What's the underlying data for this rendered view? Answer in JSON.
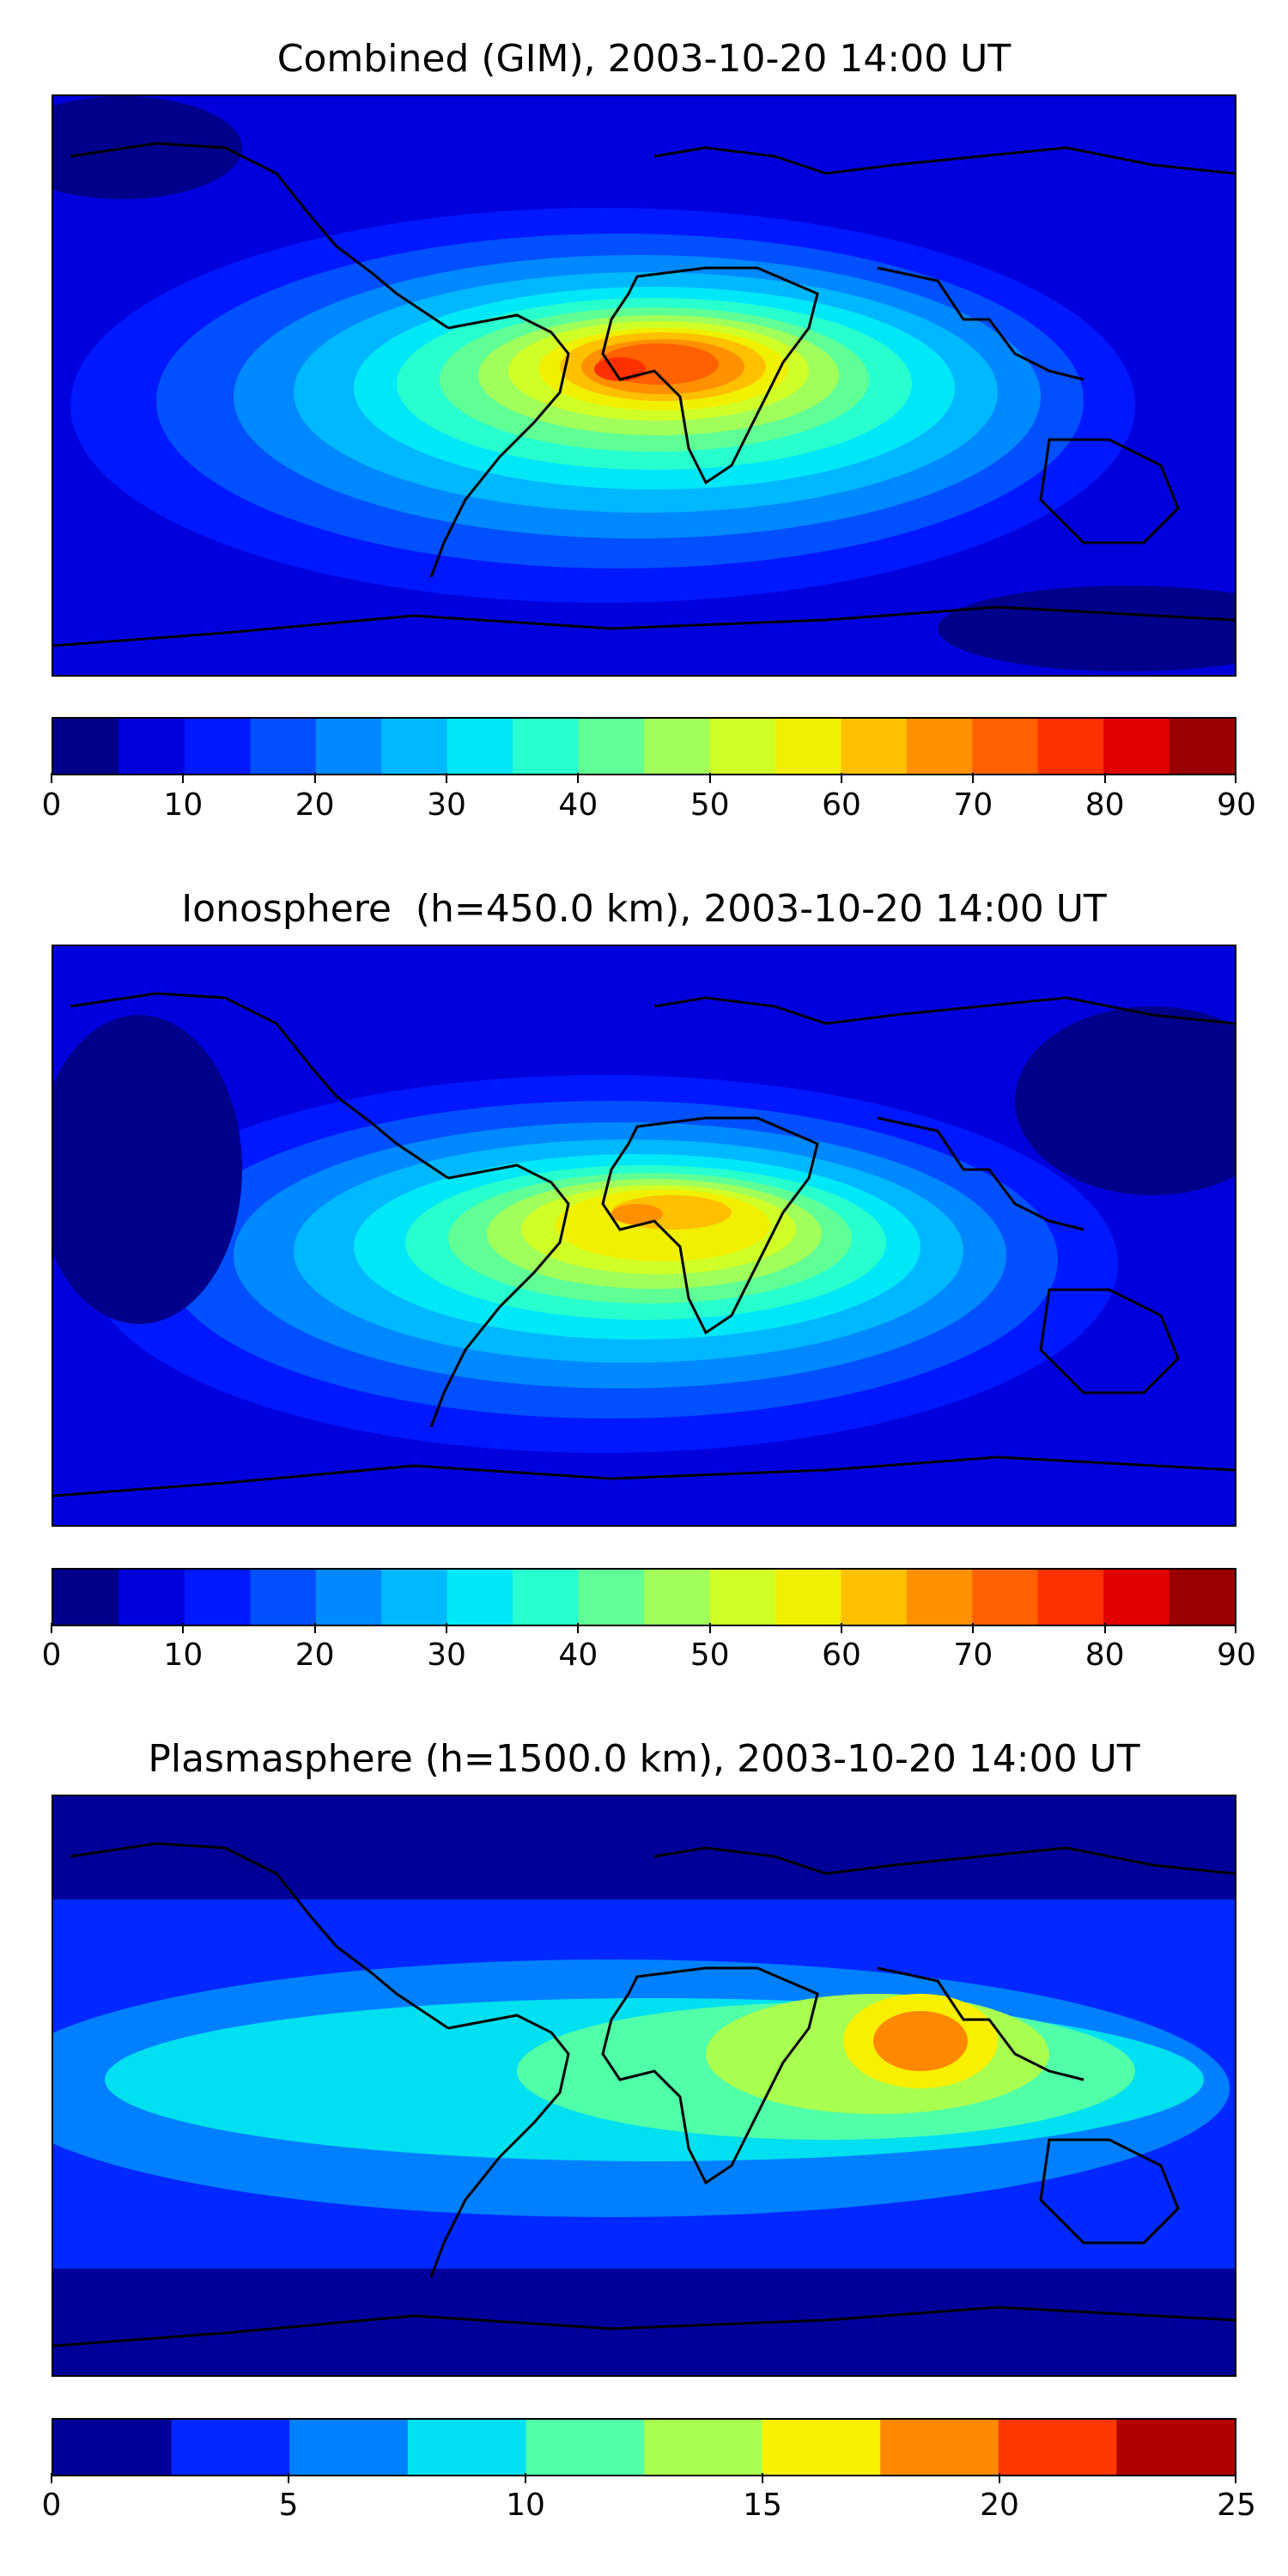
{
  "panels": [
    {
      "title": "Combined (GIM), 2003-10-20 14:00 UT",
      "colorbar": {
        "min": 0,
        "max": 90,
        "step": 5,
        "ticks": [
          "0",
          "10",
          "20",
          "30",
          "40",
          "50",
          "60",
          "70",
          "80",
          "90"
        ]
      }
    },
    {
      "title": "Ionosphere  (h=450.0 km), 2003-10-20 14:00 UT",
      "colorbar": {
        "min": 0,
        "max": 90,
        "step": 5,
        "ticks": [
          "0",
          "10",
          "20",
          "30",
          "40",
          "50",
          "60",
          "70",
          "80",
          "90"
        ]
      }
    },
    {
      "title": "Plasmasphere (h=1500.0 km), 2003-10-20 14:00 UT",
      "colorbar": {
        "min": 0,
        "max": 25,
        "step": 2.5,
        "ticks": [
          "0",
          "5",
          "10",
          "15",
          "20",
          "25"
        ]
      }
    }
  ],
  "colormap": {
    "combined_ionosphere": [
      "#00008b",
      "#0000dd",
      "#0018ff",
      "#0050ff",
      "#0088ff",
      "#00b8ff",
      "#00e8f8",
      "#28ffce",
      "#60ff96",
      "#a0ff5a",
      "#d0ff28",
      "#f0f000",
      "#ffc000",
      "#ff9000",
      "#ff6000",
      "#ff3000",
      "#e00000",
      "#9a0000"
    ],
    "plasmasphere": [
      "#000099",
      "#0028ff",
      "#0080ff",
      "#00e0f0",
      "#50ffa8",
      "#a8ff50",
      "#f8f000",
      "#ff8800",
      "#ff3800",
      "#b00000"
    ]
  }
}
